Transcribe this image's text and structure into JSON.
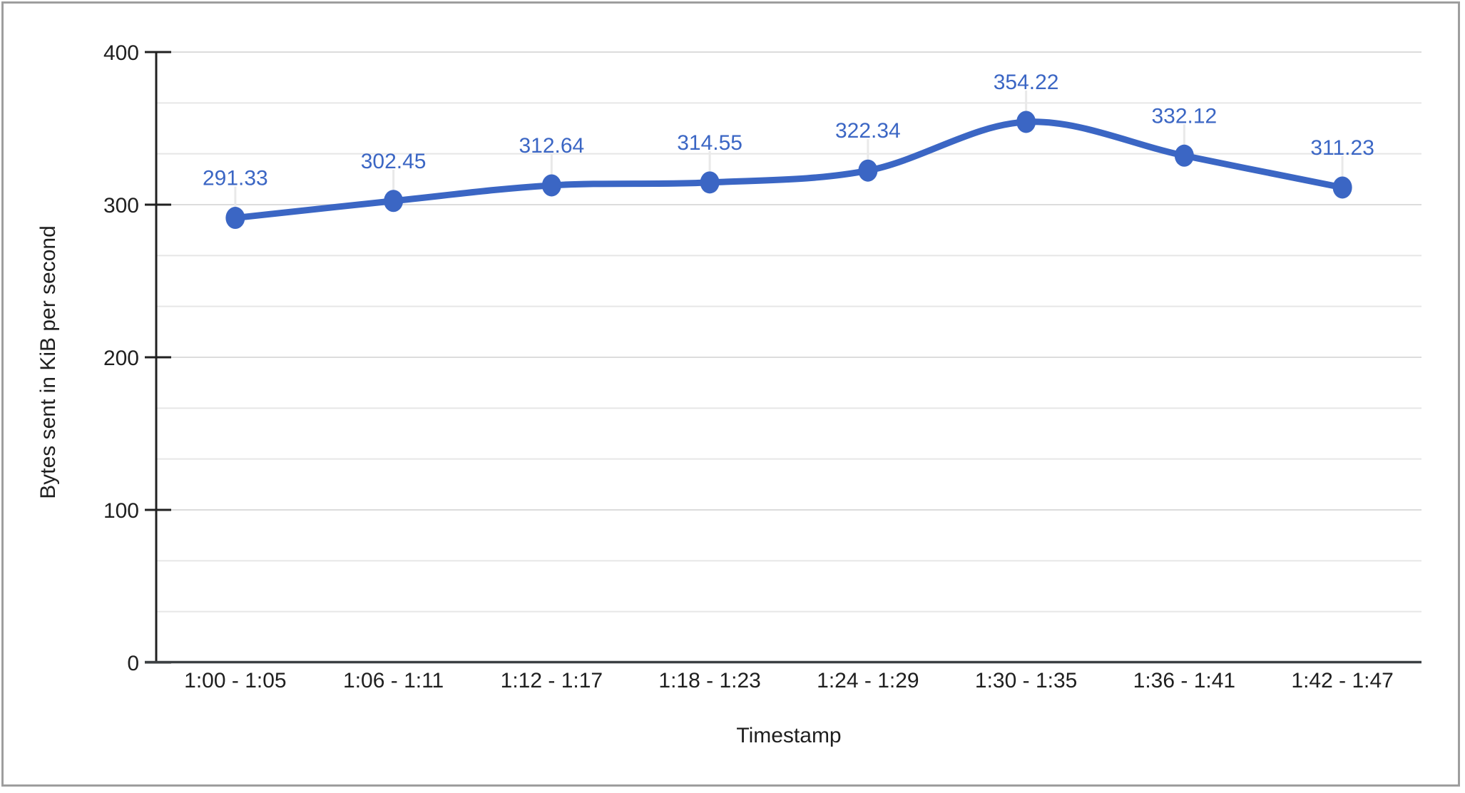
{
  "chart_data": {
    "type": "line",
    "title": "",
    "categories": [
      "1:00 - 1:05",
      "1:06 - 1:11",
      "1:12 - 1:17",
      "1:18 - 1:23",
      "1:24 - 1:29",
      "1:30 - 1:35",
      "1:36 - 1:41",
      "1:42 - 1:47"
    ],
    "series": [
      {
        "name": "Bytes sent in KiB per second",
        "values": [
          291.33,
          302.45,
          312.64,
          314.55,
          322.34,
          354.22,
          332.12,
          311.23
        ],
        "point_labels": [
          "291.33",
          "302.45",
          "312.64",
          "314.55",
          "322.34",
          "354.22",
          "332.12",
          "311.23"
        ]
      }
    ],
    "xlabel": "Timestamp",
    "ylabel": "Bytes sent in KiB per second",
    "ylim": [
      0,
      400
    ],
    "ytick_labels": [
      "0",
      "100",
      "200",
      "300",
      "400"
    ],
    "minor_gridlines_between_majors": 2,
    "grid": true,
    "legend": "none",
    "smooth_line": true,
    "show_point_markers": true,
    "show_point_labels": true
  },
  "style": {
    "accent_color": "#3b66c4",
    "label_text_color": "#3b66c4",
    "axis_text_color": "#1f1f1f",
    "y_axis_line_color": "#212121",
    "x_axis_line_color": "#3c4043",
    "tick_color": "#212121",
    "gridline_major_color": "#dcdcdc",
    "gridline_minor_color": "#e6e6e6",
    "leader_line_color": "#e9e9e9",
    "frame_border_color": "#9e9e9e",
    "background_color": "#ffffff"
  }
}
